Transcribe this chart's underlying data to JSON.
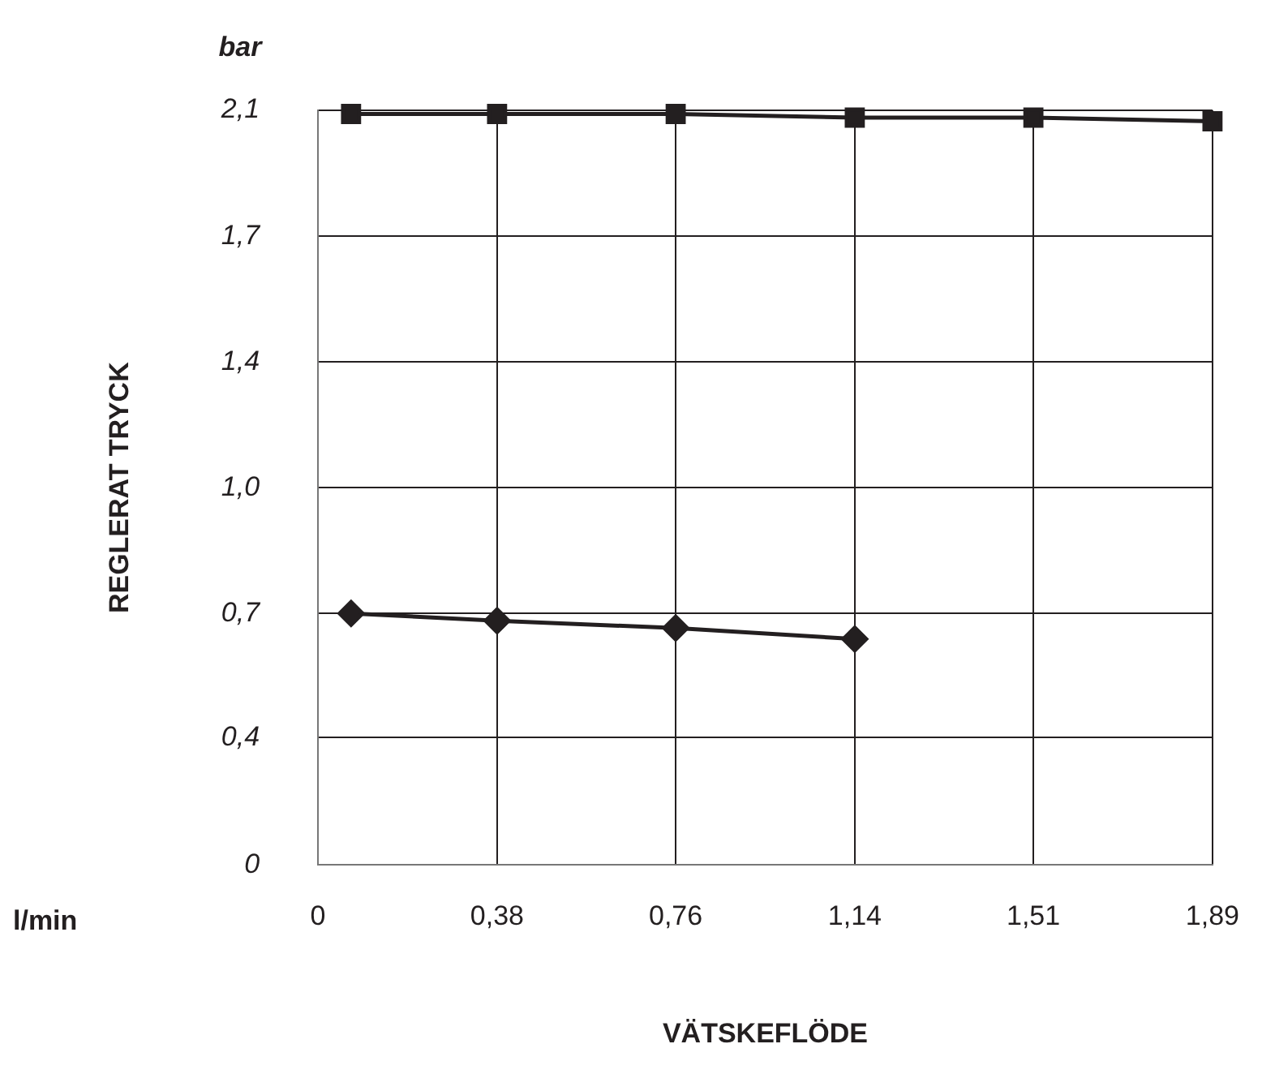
{
  "chart_data": {
    "type": "line",
    "xlabel": "VÄTSKEFLÖDE",
    "ylabel": "REGLERAT TRYCK",
    "annotations": [
      "bar",
      "l/min"
    ],
    "xlim": [
      0,
      1.893
    ],
    "xticks": [
      {
        "value": 0,
        "label": "0"
      },
      {
        "value": 0.379,
        "label": "0,38"
      },
      {
        "value": 0.757,
        "label": "0,76"
      },
      {
        "value": 1.136,
        "label": "1,14"
      },
      {
        "value": 1.514,
        "label": "1,51"
      },
      {
        "value": 1.893,
        "label": "1,89"
      }
    ],
    "ylim": [
      0,
      2.07
    ],
    "yticks": [
      {
        "value": 0,
        "label": "0"
      },
      {
        "value": 0.35,
        "label": "0,4"
      },
      {
        "value": 0.69,
        "label": "0,7"
      },
      {
        "value": 1.035,
        "label": "1,0"
      },
      {
        "value": 1.38,
        "label": "1,4"
      },
      {
        "value": 1.725,
        "label": "1,7"
      },
      {
        "value": 2.07,
        "label": "2,1"
      }
    ],
    "grid": true,
    "legend": false,
    "line_style": "solid",
    "series": [
      {
        "color": "#231f20",
        "marker": "square",
        "x": [
          0.07,
          0.379,
          0.757,
          1.136,
          1.514,
          1.893
        ],
        "values": [
          2.06,
          2.06,
          2.06,
          2.05,
          2.05,
          2.04
        ]
      },
      {
        "color": "#231f20",
        "marker": "diamond",
        "x": [
          0.07,
          0.379,
          0.757,
          1.136
        ],
        "values": [
          0.69,
          0.67,
          0.65,
          0.62
        ]
      }
    ]
  }
}
